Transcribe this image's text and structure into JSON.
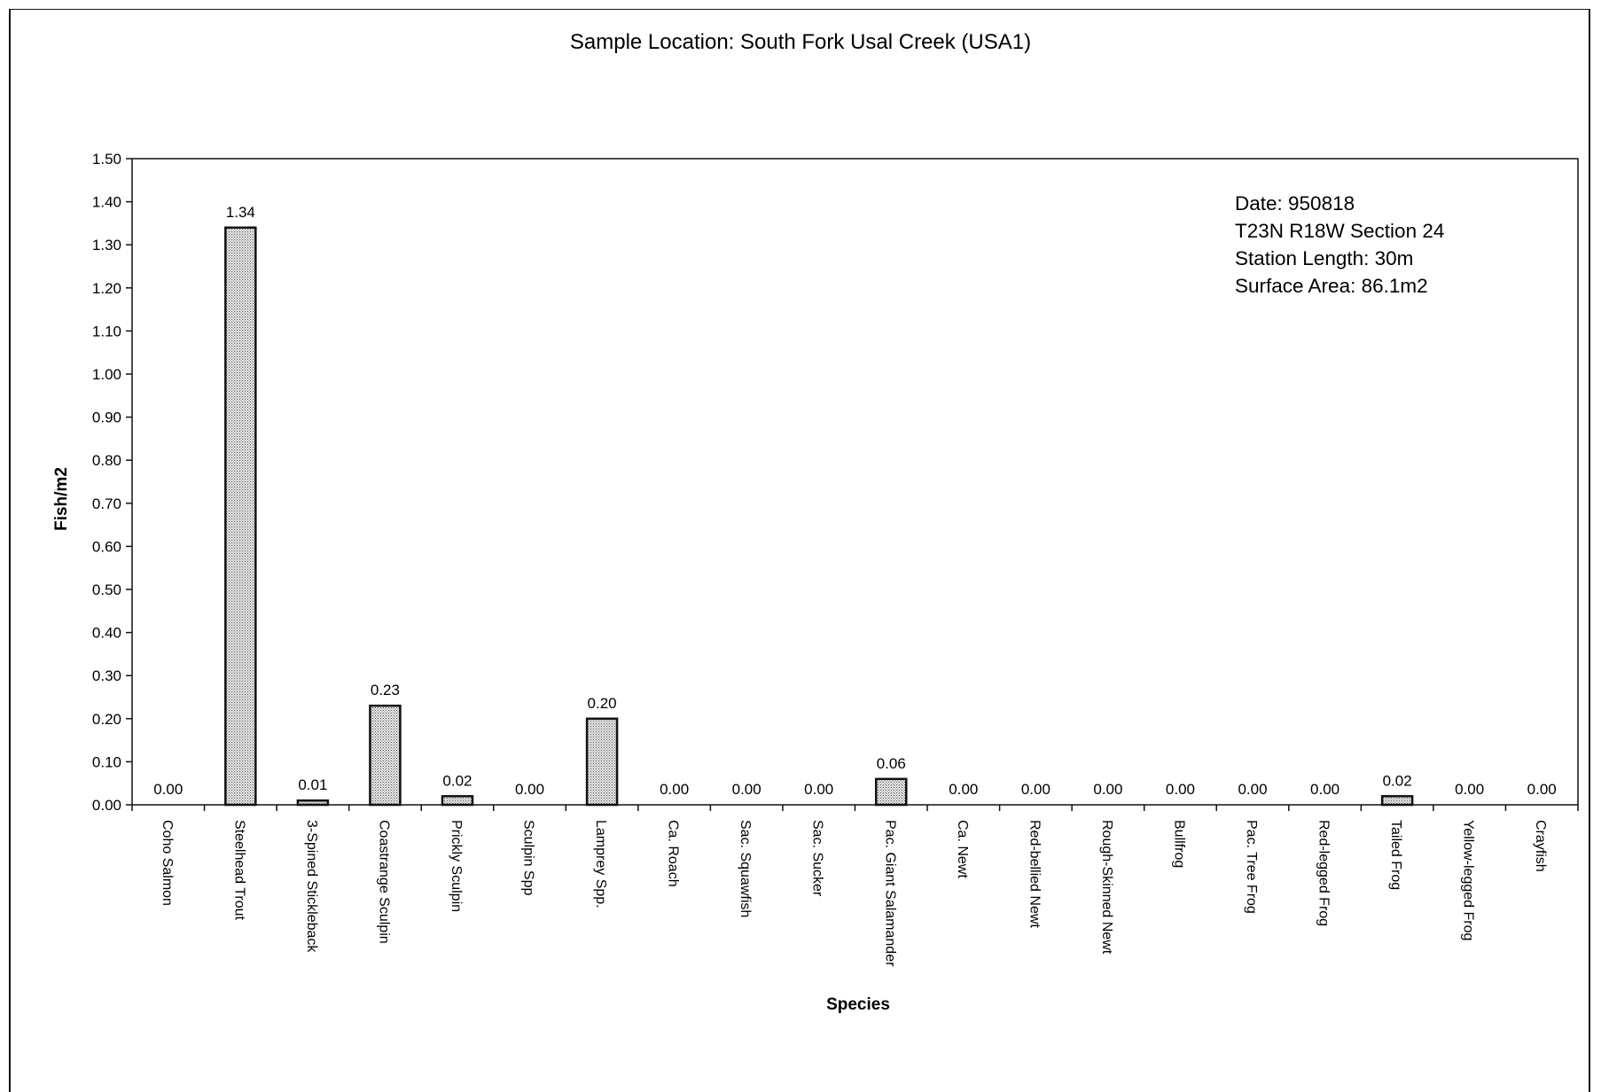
{
  "chart_data": {
    "type": "bar",
    "title": "Sample Location: South Fork Usal Creek (USA1)",
    "xlabel": "Species",
    "ylabel": "Fish/m2",
    "ylim": [
      0,
      1.5
    ],
    "yticks": [
      "0.00",
      "0.10",
      "0.20",
      "0.30",
      "0.40",
      "0.50",
      "0.60",
      "0.70",
      "0.80",
      "0.90",
      "1.00",
      "1.10",
      "1.20",
      "1.30",
      "1.40",
      "1.50"
    ],
    "categories": [
      "Coho Salmon",
      "Steelhead Trout",
      "3-Spined Stickleback",
      "Coastrange Sculpin",
      "Prickly Sculpin",
      "Sculpin Spp",
      "Lamprey Spp.",
      "Ca. Roach",
      "Sac. Squawfish",
      "Sac. Sucker",
      "Pac. Giant Salamander",
      "Ca. Newt",
      "Red-bellied Newt",
      "Rough-Skinned Newt",
      "Bullfrog",
      "Pac. Tree Frog",
      "Red-legged Frog",
      "Tailed Frog",
      "Yellow-legged Frog",
      "Crayfish"
    ],
    "values": [
      0.0,
      1.34,
      0.01,
      0.23,
      0.02,
      0.0,
      0.2,
      0.0,
      0.0,
      0.0,
      0.06,
      0.0,
      0.0,
      0.0,
      0.0,
      0.0,
      0.0,
      0.02,
      0.0,
      0.0
    ],
    "value_labels": [
      "0.00",
      "1.34",
      "0.01",
      "0.23",
      "0.02",
      "0.00",
      "0.20",
      "0.00",
      "0.00",
      "0.00",
      "0.06",
      "0.00",
      "0.00",
      "0.00",
      "0.00",
      "0.00",
      "0.00",
      "0.02",
      "0.00",
      "0.00"
    ],
    "annotation": [
      "Date: 950818",
      "T23N R18W Section 24",
      "Station Length: 30m",
      "Surface Area: 86.1m2"
    ],
    "grid": false,
    "bar_fill": "#d4d4d4"
  }
}
